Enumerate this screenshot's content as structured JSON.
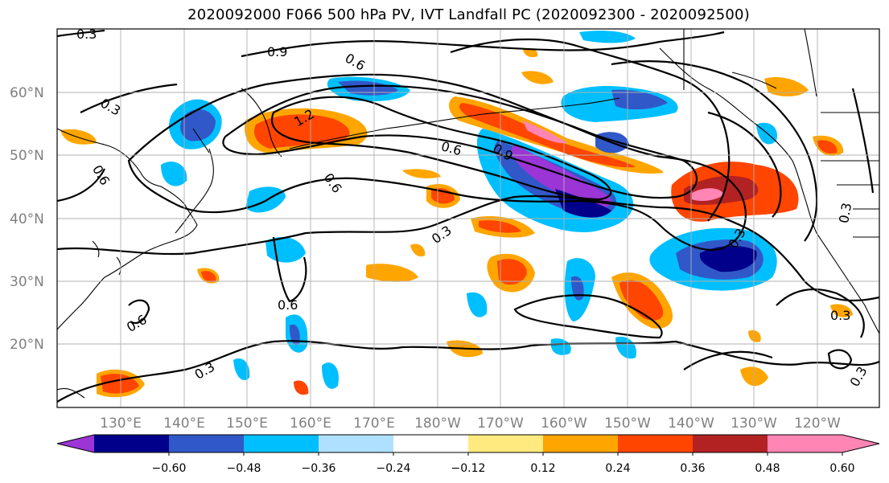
{
  "title": "2020092000 F066 500 hPa PV, IVT Landfall PC (2020092300 - 2020092500)",
  "lat_labels": [
    "60°N",
    "50°N",
    "40°N",
    "30°N",
    "20°N"
  ],
  "lon_labels": [
    "130°E",
    "140°E",
    "150°E",
    "160°E",
    "170°E",
    "180°W",
    "170°W",
    "160°W",
    "150°W",
    "140°W",
    "130°W",
    "120°W"
  ],
  "contour_labels": [
    "0.3",
    "0.9",
    "0.6",
    "1.2",
    "0.9",
    "0.6",
    "0.3",
    "0.6",
    "0.6",
    "0.3",
    "0.6",
    "0.6",
    "0.3",
    "0.3",
    "0.3",
    "0.3",
    "0.3"
  ],
  "colorbar": {
    "ticks": [
      "−0.60",
      "−0.48",
      "−0.36",
      "−0.24",
      "−0.12",
      "0.12",
      "0.24",
      "0.36",
      "0.48",
      "0.60"
    ],
    "colors": [
      "#9b35d6",
      "#00008b",
      "#3158c8",
      "#00bfff",
      "#b0e0ff",
      "#ffffff",
      "#ffea80",
      "#ffa500",
      "#ff4500",
      "#b22222",
      "#ff85b4",
      "#ff85b4"
    ]
  }
}
